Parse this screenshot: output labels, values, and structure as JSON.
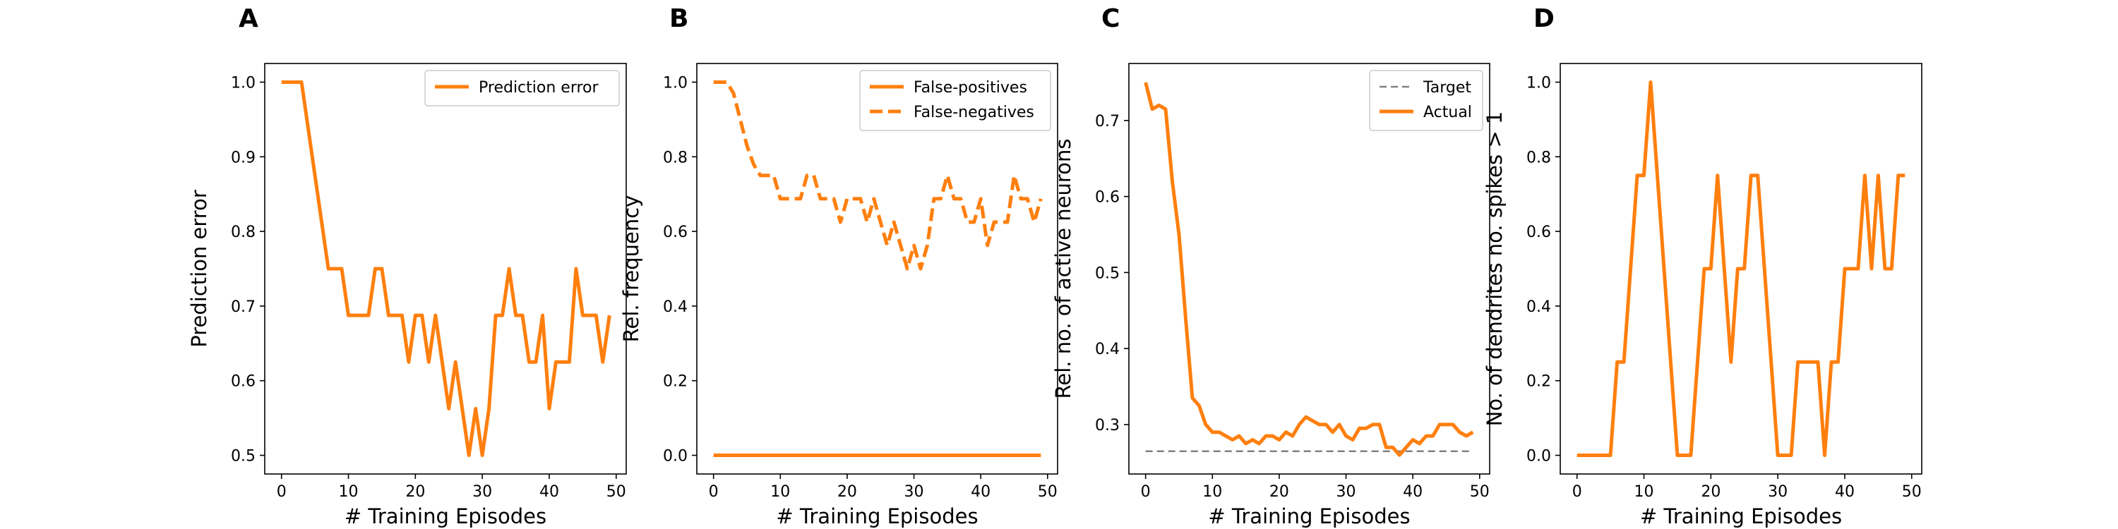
{
  "chart_data": [
    {
      "panel": "A",
      "type": "line",
      "xlabel": "# Training Episodes",
      "ylabel": "Prediction error",
      "xlim": [
        -2.5,
        51.5
      ],
      "ylim": [
        0.475,
        1.025
      ],
      "xticks": [
        "0",
        "10",
        "20",
        "30",
        "40",
        "50"
      ],
      "yticks": [
        "0.5",
        "0.6",
        "0.7",
        "0.8",
        "0.9",
        "1.0"
      ],
      "legend": {
        "position": "top-right"
      },
      "series": [
        {
          "name": "Prediction error",
          "color": "#ff7f0e",
          "style": "solid",
          "x": [
            0,
            1,
            2,
            3,
            4,
            5,
            6,
            7,
            8,
            9,
            10,
            11,
            12,
            13,
            14,
            15,
            16,
            17,
            18,
            19,
            20,
            21,
            22,
            23,
            24,
            25,
            26,
            27,
            28,
            29,
            30,
            31,
            32,
            33,
            34,
            35,
            36,
            37,
            38,
            39,
            40,
            41,
            42,
            43,
            44,
            45,
            46,
            47,
            48,
            49
          ],
          "values": [
            1.0,
            1.0,
            1.0,
            1.0,
            0.9375,
            0.875,
            0.8125,
            0.75,
            0.75,
            0.75,
            0.6875,
            0.6875,
            0.6875,
            0.6875,
            0.75,
            0.75,
            0.6875,
            0.6875,
            0.6875,
            0.625,
            0.6875,
            0.6875,
            0.625,
            0.6875,
            0.625,
            0.5625,
            0.625,
            0.5625,
            0.5,
            0.5625,
            0.5,
            0.5625,
            0.6875,
            0.6875,
            0.75,
            0.6875,
            0.6875,
            0.625,
            0.625,
            0.6875,
            0.5625,
            0.625,
            0.625,
            0.625,
            0.75,
            0.6875,
            0.6875,
            0.6875,
            0.625,
            0.6875
          ]
        }
      ]
    },
    {
      "panel": "B",
      "type": "line",
      "xlabel": "# Training Episodes",
      "ylabel": "Rel. frequency",
      "xlim": [
        -2.5,
        51.5
      ],
      "ylim": [
        -0.05,
        1.05
      ],
      "xticks": [
        "0",
        "10",
        "20",
        "30",
        "40",
        "50"
      ],
      "yticks": [
        "0.0",
        "0.2",
        "0.4",
        "0.6",
        "0.8",
        "1.0"
      ],
      "legend": {
        "position": "top-right"
      },
      "series": [
        {
          "name": "False-positives",
          "color": "#ff7f0e",
          "style": "solid",
          "x": [
            0,
            1,
            2,
            3,
            4,
            5,
            6,
            7,
            8,
            9,
            10,
            11,
            12,
            13,
            14,
            15,
            16,
            17,
            18,
            19,
            20,
            21,
            22,
            23,
            24,
            25,
            26,
            27,
            28,
            29,
            30,
            31,
            32,
            33,
            34,
            35,
            36,
            37,
            38,
            39,
            40,
            41,
            42,
            43,
            44,
            45,
            46,
            47,
            48,
            49
          ],
          "values": [
            0,
            0,
            0,
            0,
            0,
            0,
            0,
            0,
            0,
            0,
            0,
            0,
            0,
            0,
            0,
            0,
            0,
            0,
            0,
            0,
            0,
            0,
            0,
            0,
            0,
            0,
            0,
            0,
            0,
            0,
            0,
            0,
            0,
            0,
            0,
            0,
            0,
            0,
            0,
            0,
            0,
            0,
            0,
            0,
            0,
            0,
            0,
            0,
            0,
            0
          ]
        },
        {
          "name": "False-negatives",
          "color": "#ff7f0e",
          "style": "dashed",
          "x": [
            0,
            1,
            2,
            3,
            4,
            5,
            6,
            7,
            8,
            9,
            10,
            11,
            12,
            13,
            14,
            15,
            16,
            17,
            18,
            19,
            20,
            21,
            22,
            23,
            24,
            25,
            26,
            27,
            28,
            29,
            30,
            31,
            32,
            33,
            34,
            35,
            36,
            37,
            38,
            39,
            40,
            41,
            42,
            43,
            44,
            45,
            46,
            47,
            48,
            49
          ],
          "values": [
            1.0,
            1.0,
            1.0,
            0.97,
            0.9,
            0.83,
            0.78,
            0.75,
            0.75,
            0.75,
            0.6875,
            0.6875,
            0.6875,
            0.6875,
            0.75,
            0.75,
            0.6875,
            0.6875,
            0.6875,
            0.625,
            0.6875,
            0.6875,
            0.6875,
            0.625,
            0.6875,
            0.625,
            0.5625,
            0.625,
            0.5625,
            0.5,
            0.5625,
            0.5,
            0.5625,
            0.6875,
            0.6875,
            0.75,
            0.6875,
            0.6875,
            0.625,
            0.625,
            0.6875,
            0.5625,
            0.625,
            0.625,
            0.625,
            0.75,
            0.6875,
            0.6875,
            0.625,
            0.6875
          ]
        }
      ]
    },
    {
      "panel": "C",
      "type": "line",
      "xlabel": "# Training Episodes",
      "ylabel": "Rel. no. of active neurons",
      "xlim": [
        -2.5,
        51.5
      ],
      "ylim": [
        0.235,
        0.775
      ],
      "xticks": [
        "0",
        "10",
        "20",
        "30",
        "40",
        "50"
      ],
      "yticks": [
        "0.3",
        "0.4",
        "0.5",
        "0.6",
        "0.7"
      ],
      "legend": {
        "position": "top-right"
      },
      "series": [
        {
          "name": "Target",
          "color": "#808080",
          "style": "dashed",
          "x": [
            0,
            49
          ],
          "values": [
            0.265,
            0.265
          ]
        },
        {
          "name": "Actual",
          "color": "#ff7f0e",
          "style": "solid",
          "x": [
            0,
            1,
            2,
            3,
            4,
            5,
            6,
            7,
            8,
            9,
            10,
            11,
            12,
            13,
            14,
            15,
            16,
            17,
            18,
            19,
            20,
            21,
            22,
            23,
            24,
            25,
            26,
            27,
            28,
            29,
            30,
            31,
            32,
            33,
            34,
            35,
            36,
            37,
            38,
            39,
            40,
            41,
            42,
            43,
            44,
            45,
            46,
            47,
            48,
            49
          ],
          "values": [
            0.75,
            0.715,
            0.72,
            0.715,
            0.62,
            0.55,
            0.44,
            0.335,
            0.325,
            0.3,
            0.29,
            0.29,
            0.285,
            0.28,
            0.285,
            0.275,
            0.28,
            0.275,
            0.285,
            0.285,
            0.28,
            0.29,
            0.285,
            0.3,
            0.31,
            0.305,
            0.3,
            0.3,
            0.29,
            0.3,
            0.285,
            0.28,
            0.295,
            0.295,
            0.3,
            0.3,
            0.27,
            0.27,
            0.26,
            0.27,
            0.28,
            0.275,
            0.285,
            0.285,
            0.3,
            0.3,
            0.3,
            0.29,
            0.285,
            0.29
          ]
        }
      ]
    },
    {
      "panel": "D",
      "type": "line",
      "xlabel": "# Training Episodes",
      "ylabel": "No. of dendrites no. spikes > 1",
      "xlim": [
        -2.5,
        51.5
      ],
      "ylim": [
        -0.05,
        1.05
      ],
      "xticks": [
        "0",
        "10",
        "20",
        "30",
        "40",
        "50"
      ],
      "yticks": [
        "0.0",
        "0.2",
        "0.4",
        "0.6",
        "0.8",
        "1.0"
      ],
      "series": [
        {
          "color": "#ff7f0e",
          "style": "solid",
          "x": [
            0,
            1,
            2,
            3,
            4,
            5,
            6,
            7,
            8,
            9,
            10,
            11,
            12,
            13,
            14,
            15,
            16,
            17,
            18,
            19,
            20,
            21,
            22,
            23,
            24,
            25,
            26,
            27,
            28,
            29,
            30,
            31,
            32,
            33,
            34,
            35,
            36,
            37,
            38,
            39,
            40,
            41,
            42,
            43,
            44,
            45,
            46,
            47,
            48,
            49
          ],
          "values": [
            0,
            0,
            0,
            0,
            0,
            0,
            0.25,
            0.25,
            0.5,
            0.75,
            0.75,
            1.0,
            0.75,
            0.5,
            0.25,
            0,
            0,
            0,
            0.25,
            0.5,
            0.5,
            0.75,
            0.5,
            0.25,
            0.5,
            0.5,
            0.75,
            0.75,
            0.5,
            0.25,
            0,
            0,
            0,
            0.25,
            0.25,
            0.25,
            0.25,
            0,
            0.25,
            0.25,
            0.5,
            0.5,
            0.5,
            0.75,
            0.5,
            0.75,
            0.5,
            0.5,
            0.75,
            0.75
          ]
        }
      ]
    }
  ]
}
